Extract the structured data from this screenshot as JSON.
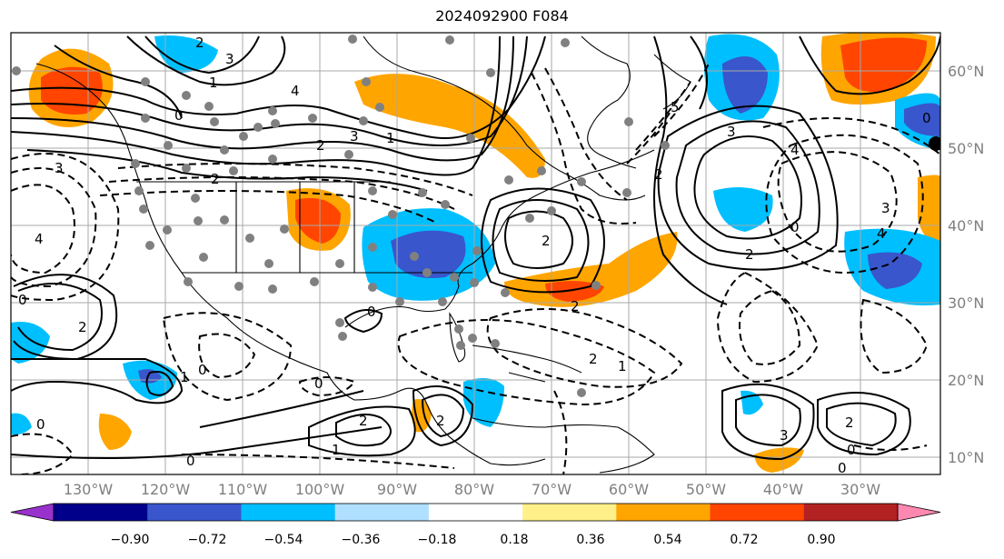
{
  "title": "2024092900 F084",
  "lon_ticks": [
    "130°W",
    "120°W",
    "110°W",
    "100°W",
    "90°W",
    "80°W",
    "70°W",
    "60°W",
    "50°W",
    "40°W",
    "30°W"
  ],
  "lat_ticks": [
    "60°N",
    "50°N",
    "40°N",
    "30°N",
    "20°N",
    "10°N"
  ],
  "colorbar": {
    "labels": [
      "−0.90",
      "−0.72",
      "−0.54",
      "−0.36",
      "−0.18",
      "0.18",
      "0.36",
      "0.54",
      "0.72",
      "0.90"
    ],
    "colors": [
      "#9932cc",
      "#00008b",
      "#3a56cc",
      "#00bfff",
      "#b0e0ff",
      "#ffffff",
      "#fff08a",
      "#ffa500",
      "#ff4500",
      "#b22222",
      "#ff88b0"
    ]
  },
  "contour_labels": [
    "2",
    "3",
    "0",
    "1",
    "4",
    "5",
    "0",
    "2",
    "3",
    "1",
    "2",
    "3",
    "4",
    "2",
    "0",
    "2",
    "1",
    "0",
    "2",
    "3",
    "2",
    "4",
    "0",
    "2",
    "2",
    "0",
    "3",
    "1",
    "0",
    "3",
    "0",
    "2",
    "0",
    "0",
    "0",
    "1",
    "2",
    "4",
    "2"
  ],
  "styles": {
    "grid_color": "#a9a9a9",
    "tick_color": "#7f7f7f"
  }
}
